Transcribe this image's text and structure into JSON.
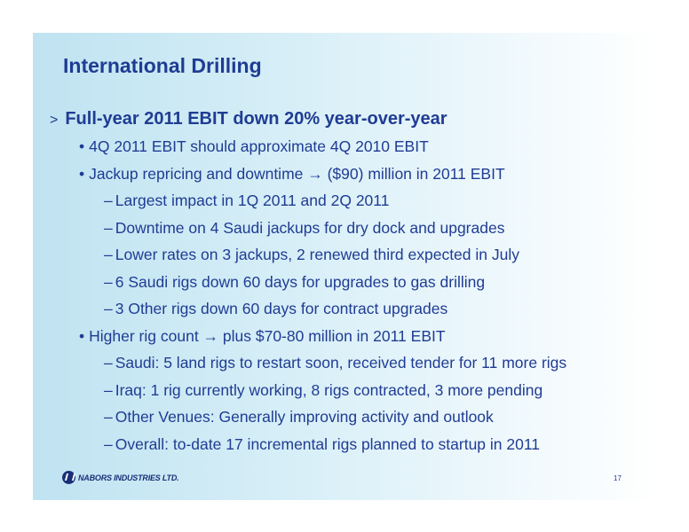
{
  "title": "International Drilling",
  "main_bullet": {
    "marker": ">",
    "text": "Full-year 2011 EBIT down 20% year-over-year"
  },
  "sub_bullets": [
    {
      "marker": "•",
      "text": "4Q 2011 EBIT should approximate 4Q 2010 EBIT"
    },
    {
      "marker": "•",
      "text": "Jackup repricing and downtime → ($90) million in 2011 EBIT"
    },
    {
      "marker": "–",
      "text": "Largest impact in 1Q 2011 and 2Q 2011"
    },
    {
      "marker": "–",
      "text": "Downtime on 4 Saudi jackups for dry dock and upgrades"
    },
    {
      "marker": "–",
      "text": "Lower rates on 3 jackups, 2 renewed third expected in July"
    },
    {
      "marker": "–",
      "text": "6 Saudi rigs down 60 days for upgrades to gas drilling"
    },
    {
      "marker": "–",
      "text": "3 Other rigs down 60 days for contract upgrades"
    },
    {
      "marker": "•",
      "text": "Higher rig count → plus $70-80 million in 2011 EBIT"
    },
    {
      "marker": "–",
      "text": "Saudi: 5 land rigs to restart soon, received tender for 11 more rigs"
    },
    {
      "marker": "–",
      "text": "Iraq: 1 rig currently working, 8 rigs contracted, 3 more pending"
    },
    {
      "marker": "–",
      "text": "Other Venues: Generally improving activity and outlook"
    },
    {
      "marker": "–",
      "text": "Overall: to-date 17 incremental rigs planned to startup in 2011"
    }
  ],
  "footer": {
    "logo_text": "NABORS INDUSTRIES LTD.",
    "logo_icon": "nabors-logo-icon",
    "page_number": "17"
  },
  "colors": {
    "text": "#1f3c93",
    "background_left": "#bfe3f1",
    "background_right": "#ffffff"
  }
}
